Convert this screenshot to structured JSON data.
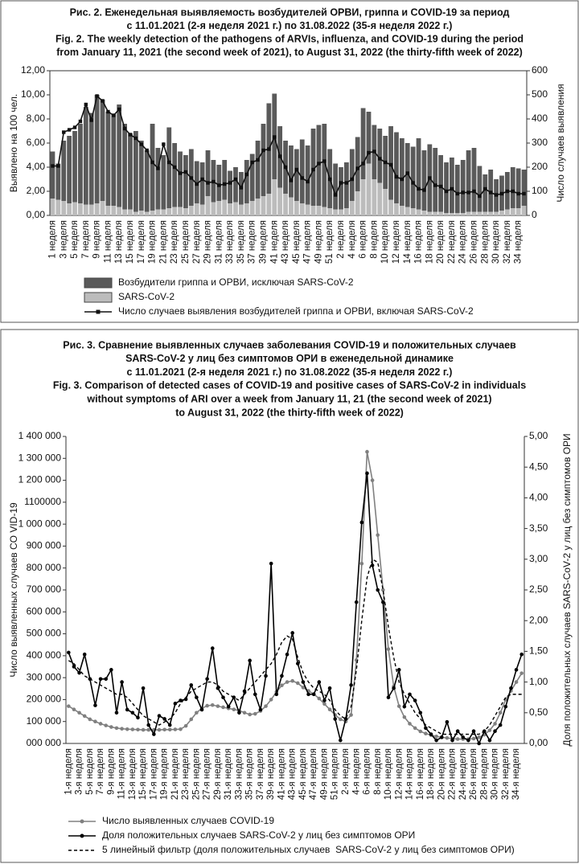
{
  "chart_data": [
    {
      "type": "bar",
      "stacked": true,
      "grid": false,
      "title": [
        "Рис. 2. Еженедельная выявляемость возбудителей ОРВИ, гриппа и COVID-19 за период",
        "с 11.01.2021 (2-я неделя 2021 г.) по 31.08.2022 (35-я неделя 2022 г.)",
        "Fig. 2. The weekly detection of the pathogens of ARVIs, influenza, and COVID-19 during the period",
        "from January 11, 2021 (the second week of 2021), to August 31, 2022 (the thirty-fifth week of 2022)"
      ],
      "y_label": "Выявлено на 100 чел.",
      "y2_label": "Число случаев выявления",
      "categories": [
        "1 неделя",
        null,
        "3 неделя",
        null,
        "5 неделя",
        null,
        "7 неделя",
        null,
        "9 неделя",
        null,
        "11 неделя",
        null,
        "13 неделя",
        null,
        "15 неделя",
        null,
        "17 неделя",
        null,
        "19 неделя",
        null,
        "21 неделя",
        null,
        "23 неделя",
        null,
        "25 неделя",
        null,
        "27 неделя",
        null,
        "29 неделя",
        null,
        "31 неделя",
        null,
        "33 неделя",
        null,
        "35 неделя",
        null,
        "37 неделя",
        null,
        "39 неделя",
        null,
        "41 неделя",
        null,
        "43 неделя",
        null,
        "45 неделя",
        null,
        "47 неделя",
        null,
        "49 неделя",
        null,
        "51 неделя",
        null,
        "2 неделя",
        null,
        "4 неделя",
        null,
        "6 неделя",
        null,
        "8 неделя",
        null,
        "10 неделя",
        null,
        "12 неделя",
        null,
        "14 неделя",
        null,
        "16 неделя",
        null,
        "18 неделя",
        null,
        "20 неделя",
        null,
        "22 неделя",
        null,
        "24 неделя",
        null,
        "26 неделя",
        null,
        "28 неделя",
        null,
        "30 неделя",
        null,
        "32 неделя",
        null,
        "34 неделя",
        null
      ],
      "ylim": [
        0,
        12
      ],
      "yticks": [
        {
          "value": 0,
          "label": "0,00"
        },
        {
          "value": 2,
          "label": "2,00"
        },
        {
          "value": 4,
          "label": "4,00"
        },
        {
          "value": 6,
          "label": "6,00"
        },
        {
          "value": 8,
          "label": "8,00"
        },
        {
          "value": 10,
          "label": "10,00"
        },
        {
          "value": 12,
          "label": "12,00"
        }
      ],
      "y2lim": [
        0,
        600
      ],
      "y2ticks": [
        0,
        100,
        200,
        300,
        400,
        500,
        600
      ],
      "series": [
        {
          "name": "Возбудители гриппа и ОРВИ, исключая SARS-CoV-2",
          "type": "bar",
          "color": "#5a5a5a",
          "values": [
            3.9,
            3.0,
            5.0,
            5.6,
            5.9,
            6.6,
            8.1,
            7.6,
            9.0,
            8.4,
            7.8,
            7.6,
            8.5,
            7.1,
            6.3,
            6.7,
            5.8,
            5.1,
            7.2,
            5.1,
            4.5,
            6.7,
            5.3,
            4.6,
            4.4,
            4.7,
            3.5,
            3.5,
            3.8,
            3.5,
            3.0,
            3.3,
            2.7,
            2.9,
            2.7,
            3.6,
            3.9,
            4.8,
            6.0,
            7.5,
            7.1,
            5.1,
            4.4,
            4.3,
            4.3,
            5.3,
            4.9,
            6.4,
            6.7,
            6.9,
            4.9,
            3.8,
            3.5,
            3.8,
            4.3,
            4.5,
            5.9,
            4.3,
            4.5,
            4.5,
            4.4,
            6.1,
            5.9,
            5.6,
            5.3,
            5.1,
            5.9,
            5.0,
            5.6,
            5.3,
            4.7,
            4.2,
            4.6,
            4.0,
            4.4,
            5.1,
            5.3,
            3.8,
            3.1,
            3.5,
            2.7,
            2.9,
            3.1,
            3.4,
            3.3,
            3.0
          ]
        },
        {
          "name": "SARS-CoV-2",
          "type": "bar",
          "color": "#bcbcbc",
          "values": [
            1.4,
            1.3,
            1.2,
            1.0,
            1.1,
            1.0,
            0.9,
            0.9,
            1.0,
            1.2,
            0.8,
            0.8,
            0.7,
            0.5,
            0.5,
            0.3,
            0.4,
            0.3,
            0.4,
            0.5,
            0.5,
            0.6,
            0.7,
            0.7,
            0.6,
            0.8,
            1.0,
            0.9,
            1.6,
            1.1,
            1.2,
            1.3,
            1.0,
            1.1,
            0.9,
            1.0,
            1.2,
            1.4,
            1.6,
            1.8,
            3.0,
            2.3,
            1.8,
            1.5,
            1.2,
            1.0,
            0.9,
            0.8,
            0.8,
            0.7,
            0.6,
            0.5,
            0.5,
            0.6,
            1.2,
            2.0,
            3.0,
            4.3,
            3.0,
            2.7,
            2.2,
            1.3,
            1.0,
            0.8,
            0.7,
            0.6,
            0.5,
            0.4,
            0.3,
            0.3,
            0.3,
            0.2,
            0.2,
            0.2,
            0.2,
            0.3,
            0.3,
            0.3,
            0.3,
            0.3,
            0.3,
            0.4,
            0.5,
            0.6,
            0.6,
            0.8
          ]
        },
        {
          "name": "Число случаев выявления возбудителей гриппа и ОРВИ, включая SARS-CoV-2",
          "type": "line",
          "axis": "y2",
          "color": "#111111",
          "marker": "square",
          "values": [
            205,
            205,
            345,
            355,
            365,
            390,
            460,
            395,
            495,
            475,
            430,
            415,
            440,
            360,
            335,
            320,
            295,
            270,
            220,
            195,
            295,
            220,
            200,
            175,
            180,
            155,
            130,
            150,
            135,
            140,
            125,
            130,
            135,
            150,
            115,
            170,
            220,
            230,
            270,
            275,
            325,
            245,
            200,
            145,
            190,
            155,
            140,
            190,
            215,
            225,
            150,
            85,
            135,
            135,
            150,
            195,
            215,
            260,
            265,
            235,
            220,
            210,
            160,
            150,
            175,
            135,
            110,
            105,
            155,
            125,
            120,
            100,
            110,
            90,
            95,
            95,
            100,
            80,
            110,
            95,
            85,
            90,
            100,
            100,
            90,
            90
          ]
        }
      ]
    },
    {
      "type": "line",
      "grid": false,
      "title": [
        "Рис. 3. Сравнение выявленных случаев заболевания COVID-19 и положительных случаев",
        "SARS-CoV-2 у лиц без симптомов ОРИ в еженедельной динамике",
        "с 11.01.2021 (2-я неделя 2021 г.) по 31.08.2022 (35-я неделя 2022 г.)",
        "Fig. 3. Comparison of detected cases of COVID-19 and positive cases of SARS-CoV-2 in individuals",
        "without symptoms of ARI over a week from January 11, 21 (the second week of 2021)",
        "to August 31, 2022 (the thirty-fifth week of 2022)"
      ],
      "y_label": "Число выявленных случаев CO VID-19",
      "y2_label": "Доля положительных случаев SARS-CoV-2 у лиц без симптомов ОРИ",
      "categories": [
        "1-я неделя",
        null,
        "3-я неделя",
        null,
        "5-я неделя",
        null,
        "7-я неделя",
        null,
        "9-я неделя",
        null,
        "11-я неделя",
        null,
        "13-я неделя",
        null,
        "15-я неделя",
        null,
        "17-я неделя",
        null,
        "19-я неделя",
        null,
        "21-я неделя",
        null,
        "23-я неделя",
        null,
        "25-я неделя",
        null,
        "27-я неделя",
        null,
        "29-я неделя",
        null,
        "31-я неделя",
        null,
        "33-я неделя",
        null,
        "35-я неделя",
        null,
        "37-я неделя",
        null,
        "39-я неделя",
        null,
        "41-я неделя",
        null,
        "43-я неделя",
        null,
        "45-я неделя",
        null,
        "47-я неделя",
        null,
        "49-я неделя",
        null,
        "51-я неделя",
        null,
        "2-я неделя",
        null,
        "4-я неделя",
        null,
        "6-я неделя",
        null,
        "8-я неделя",
        null,
        "10-я неделя",
        null,
        "12-я неделя",
        null,
        "14-я неделя",
        null,
        "16-я неделя",
        null,
        "18-я неделя",
        null,
        "20-я неделя",
        null,
        "22-я неделя",
        null,
        "24-я неделя",
        null,
        "26-я неделя",
        null,
        "28-я неделя",
        null,
        "30-я неделя",
        null,
        "32-я неделя",
        null,
        "34-я неделя",
        null
      ],
      "ylim": [
        0,
        1400000
      ],
      "yticks": [
        {
          "value": 0,
          "label": "000 000"
        },
        {
          "value": 100000,
          "label": "100 000"
        },
        {
          "value": 200000,
          "label": "200 000"
        },
        {
          "value": 300000,
          "label": "300 000"
        },
        {
          "value": 400000,
          "label": "400 000"
        },
        {
          "value": 500000,
          "label": "500 000"
        },
        {
          "value": 600000,
          "label": "600 000"
        },
        {
          "value": 700000,
          "label": "700 000"
        },
        {
          "value": 800000,
          "label": "800 000"
        },
        {
          "value": 900000,
          "label": "900 000"
        },
        {
          "value": 1000000,
          "label": "1 000 000"
        },
        {
          "value": 1100000,
          "label": "1100000"
        },
        {
          "value": 1200000,
          "label": "1 200 000"
        },
        {
          "value": 1300000,
          "label": "1 300 000"
        },
        {
          "value": 1400000,
          "label": "1 400 000"
        }
      ],
      "y2lim": [
        0,
        5
      ],
      "y2ticks": [
        {
          "value": 0,
          "label": "0,00"
        },
        {
          "value": 0.5,
          "label": "0,50"
        },
        {
          "value": 1,
          "label": "1,00"
        },
        {
          "value": 1.5,
          "label": "1,50"
        },
        {
          "value": 2,
          "label": "2,00"
        },
        {
          "value": 2.5,
          "label": "2,50"
        },
        {
          "value": 3,
          "label": "3,00"
        },
        {
          "value": 3.5,
          "label": "3,50"
        },
        {
          "value": 4,
          "label": "4,00"
        },
        {
          "value": 4.5,
          "label": "4,50"
        },
        {
          "value": 5,
          "label": "5,00"
        }
      ],
      "series": [
        {
          "name": "Число выявленных случаев COVID-19",
          "type": "line",
          "color": "#808080",
          "marker": "circle",
          "values": [
            170000,
            155000,
            140000,
            125000,
            110000,
            100000,
            90000,
            82000,
            75000,
            70000,
            67000,
            65000,
            64000,
            63000,
            62000,
            62000,
            62000,
            62000,
            63000,
            63000,
            64000,
            65000,
            80000,
            110000,
            140000,
            160000,
            172000,
            175000,
            170000,
            165000,
            160000,
            155000,
            150000,
            140000,
            132000,
            135000,
            148000,
            170000,
            200000,
            235000,
            265000,
            280000,
            285000,
            275000,
            255000,
            240000,
            225000,
            205000,
            180000,
            155000,
            130000,
            110000,
            100000,
            130000,
            380000,
            820000,
            1330000,
            1200000,
            950000,
            700000,
            430000,
            260000,
            170000,
            120000,
            90000,
            70000,
            55000,
            45000,
            38000,
            32000,
            28000,
            25000,
            22000,
            20000,
            20000,
            20000,
            22000,
            28000,
            40000,
            60000,
            90000,
            140000,
            200000,
            240000,
            280000,
            320000
          ]
        },
        {
          "name": "Доля положительных случаев SARS-CoV-2 у лиц без симптомов ОРИ",
          "type": "line",
          "axis": "y2",
          "color": "#000000",
          "marker": "circle",
          "values": [
            1.48,
            1.25,
            1.15,
            1.45,
            1.05,
            0.62,
            1.05,
            1.05,
            1.2,
            0.5,
            1.0,
            0.55,
            0.5,
            0.42,
            0.9,
            0.3,
            0.15,
            0.45,
            0.4,
            0.3,
            0.65,
            0.7,
            0.72,
            0.95,
            0.75,
            0.55,
            1.05,
            1.55,
            0.9,
            0.75,
            0.6,
            0.75,
            0.5,
            0.85,
            1.35,
            0.8,
            0.55,
            1.1,
            2.93,
            0.8,
            1.1,
            1.45,
            1.8,
            1.3,
            1.0,
            0.8,
            0.8,
            1.0,
            0.7,
            0.9,
            0.4,
            0.05,
            0.4,
            0.95,
            2.3,
            3.6,
            4.4,
            2.9,
            2.5,
            2.3,
            0.75,
            0.9,
            1.2,
            0.6,
            0.8,
            0.7,
            0.5,
            0.25,
            0.15,
            0.05,
            0.1,
            0.35,
            0.05,
            0.2,
            0.1,
            0.05,
            0.2,
            0.0,
            0.2,
            0.05,
            0.2,
            0.3,
            0.6,
            0.9,
            1.2,
            1.45
          ]
        },
        {
          "name": "5 линейный фильтр (доля положительных случаев  SARS-CoV-2 у лиц без симптомов ОРИ)",
          "type": "line",
          "axis": "y2",
          "color": "#000000",
          "dash": true,
          "values": [
            1.35,
            1.3,
            1.2,
            1.1,
            1.05,
            1.0,
            0.95,
            0.9,
            0.85,
            0.8,
            0.8,
            0.75,
            0.65,
            0.55,
            0.45,
            0.4,
            0.35,
            0.3,
            0.35,
            0.4,
            0.5,
            0.65,
            0.75,
            0.85,
            0.9,
            0.95,
            1.0,
            1.0,
            0.95,
            0.85,
            0.8,
            0.75,
            0.7,
            0.8,
            0.9,
            1.0,
            1.1,
            1.2,
            1.3,
            1.45,
            1.65,
            1.75,
            1.7,
            1.4,
            1.15,
            1.0,
            0.9,
            0.85,
            0.8,
            0.7,
            0.55,
            0.45,
            0.4,
            0.6,
            1.2,
            2.0,
            2.7,
            3.0,
            2.95,
            2.5,
            1.9,
            1.4,
            1.0,
            0.8,
            0.65,
            0.5,
            0.4,
            0.3,
            0.25,
            0.2,
            0.15,
            0.15,
            0.15,
            0.15,
            0.15,
            0.15,
            0.15,
            0.15,
            0.2,
            0.3,
            0.45,
            0.6,
            0.75,
            0.8,
            0.8,
            0.8
          ]
        }
      ]
    }
  ]
}
